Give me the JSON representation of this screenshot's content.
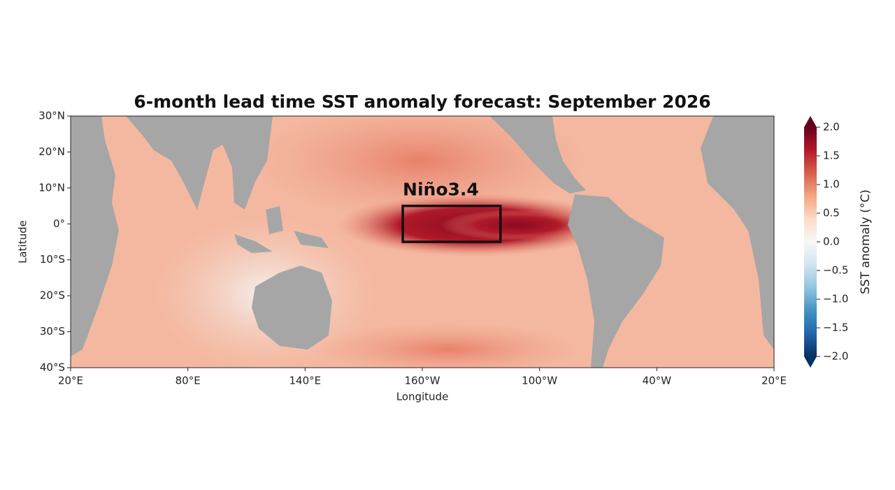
{
  "chart_data": {
    "type": "map",
    "title": "6-month lead time SST anomaly forecast: September 2026",
    "xlabel": "Longitude",
    "ylabel": "Latitude",
    "xlim": [
      20,
      380
    ],
    "xticks": [
      {
        "value": 20,
        "label": "20°E"
      },
      {
        "value": 80,
        "label": "80°E"
      },
      {
        "value": 140,
        "label": "140°E"
      },
      {
        "value": 200,
        "label": "160°W"
      },
      {
        "value": 260,
        "label": "100°W"
      },
      {
        "value": 320,
        "label": "40°W"
      },
      {
        "value": 380,
        "label": "20°E"
      }
    ],
    "ylim": [
      -40,
      30
    ],
    "yticks": [
      {
        "value": 30,
        "label": "30°N"
      },
      {
        "value": 20,
        "label": "20°N"
      },
      {
        "value": 10,
        "label": "10°N"
      },
      {
        "value": 0,
        "label": "0°"
      },
      {
        "value": -10,
        "label": "10°S"
      },
      {
        "value": -20,
        "label": "20°S"
      },
      {
        "value": -30,
        "label": "30°S"
      },
      {
        "value": -40,
        "label": "40°S"
      }
    ],
    "colorbar": {
      "label": "SST anomaly (°C)",
      "lim": [
        -2,
        2
      ],
      "ticks": [
        {
          "value": 2,
          "label": "2.0"
        },
        {
          "value": 1.5,
          "label": "1.5"
        },
        {
          "value": 1,
          "label": "1.0"
        },
        {
          "value": 0.5,
          "label": "0.5"
        },
        {
          "value": 0,
          "label": "0.0"
        },
        {
          "value": -0.5,
          "label": "−0.5"
        },
        {
          "value": -1,
          "label": "−1.0"
        },
        {
          "value": -1.5,
          "label": "−1.5"
        },
        {
          "value": -2,
          "label": "−2.0"
        }
      ]
    },
    "annotations": [
      {
        "text": "Niño3.4",
        "xlim": [
          190,
          240
        ],
        "ylim": [
          -5,
          5
        ]
      }
    ]
  }
}
